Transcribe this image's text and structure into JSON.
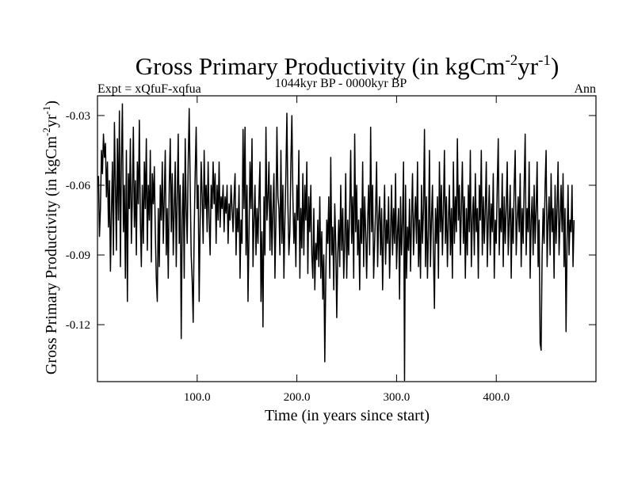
{
  "chart_data": {
    "type": "line",
    "title": "Gross Primary Productivity (in kgCm",
    "title_sup1": "-2",
    "title_mid": "yr",
    "title_sup2": "-1",
    "title_end": ")",
    "subtitle_left": "Expt = xQfuF-xqfua",
    "subtitle_center": "1044kyr BP - 0000kyr BP",
    "subtitle_right": "Ann",
    "xlabel": "Time (in years since start)",
    "ylabel": "Gross Primary Productivity (in kgCm",
    "ylabel_sup1": "-2",
    "ylabel_mid": "yr",
    "ylabel_sup2": "-1",
    "ylabel_end": ")",
    "xlim": [
      0,
      500
    ],
    "ylim": [
      -0.1445,
      -0.0215
    ],
    "x_ticks": [
      {
        "value": 100,
        "label": "100.0"
      },
      {
        "value": 200,
        "label": "200.0"
      },
      {
        "value": 300,
        "label": "300.0"
      },
      {
        "value": 400,
        "label": "400.0"
      }
    ],
    "y_ticks": [
      {
        "value": -0.03,
        "label": "-0.03"
      },
      {
        "value": -0.06,
        "label": "-0.06"
      },
      {
        "value": -0.09,
        "label": "-0.09"
      },
      {
        "value": -0.12,
        "label": "-0.12"
      }
    ],
    "series": [
      {
        "name": "Ann",
        "x_start": 1,
        "x_step": 1,
        "color": "#000000",
        "values": [
          -0.056,
          -0.082,
          -0.07,
          -0.045,
          -0.055,
          -0.038,
          -0.048,
          -0.042,
          -0.065,
          -0.05,
          -0.078,
          -0.058,
          -0.097,
          -0.072,
          -0.05,
          -0.09,
          -0.033,
          -0.06,
          -0.088,
          -0.04,
          -0.075,
          -0.028,
          -0.095,
          -0.05,
          -0.025,
          -0.08,
          -0.06,
          -0.1,
          -0.045,
          -0.11,
          -0.055,
          -0.07,
          -0.04,
          -0.085,
          -0.065,
          -0.035,
          -0.078,
          -0.058,
          -0.09,
          -0.05,
          -0.068,
          -0.032,
          -0.075,
          -0.095,
          -0.06,
          -0.085,
          -0.05,
          -0.07,
          -0.04,
          -0.088,
          -0.06,
          -0.075,
          -0.045,
          -0.093,
          -0.055,
          -0.068,
          -0.052,
          -0.08,
          -0.1,
          -0.11,
          -0.07,
          -0.095,
          -0.06,
          -0.075,
          -0.05,
          -0.085,
          -0.065,
          -0.045,
          -0.09,
          -0.07,
          -0.1,
          -0.06,
          -0.04,
          -0.08,
          -0.055,
          -0.09,
          -0.07,
          -0.05,
          -0.095,
          -0.065,
          -0.038,
          -0.085,
          -0.06,
          -0.126,
          -0.075,
          -0.055,
          -0.1,
          -0.04,
          -0.07,
          -0.085,
          -0.05,
          -0.027,
          -0.06,
          -0.09,
          -0.101,
          -0.119,
          -0.08,
          -0.055,
          -0.035,
          -0.07,
          -0.06,
          -0.11,
          -0.075,
          -0.05,
          -0.065,
          -0.085,
          -0.045,
          -0.07,
          -0.06,
          -0.08,
          -0.05,
          -0.075,
          -0.09,
          -0.06,
          -0.07,
          -0.05,
          -0.068,
          -0.055,
          -0.085,
          -0.06,
          -0.075,
          -0.05,
          -0.078,
          -0.065,
          -0.07,
          -0.06,
          -0.08,
          -0.065,
          -0.072,
          -0.06,
          -0.085,
          -0.068,
          -0.075,
          -0.06,
          -0.07,
          -0.08,
          -0.065,
          -0.055,
          -0.09,
          -0.07,
          -0.08,
          -0.06,
          -0.1,
          -0.075,
          -0.085,
          -0.036,
          -0.07,
          -0.035,
          -0.09,
          -0.06,
          -0.11,
          -0.08,
          -0.05,
          -0.07,
          -0.04,
          -0.095,
          -0.075,
          -0.06,
          -0.09,
          -0.07,
          -0.085,
          -0.065,
          -0.05,
          -0.11,
          -0.08,
          -0.121,
          -0.065,
          -0.09,
          -0.035,
          -0.075,
          -0.065,
          -0.05,
          -0.088,
          -0.06,
          -0.09,
          -0.07,
          -0.055,
          -0.1,
          -0.075,
          -0.035,
          -0.065,
          -0.07,
          -0.09,
          -0.045,
          -0.085,
          -0.06,
          -0.1,
          -0.075,
          -0.055,
          -0.029,
          -0.068,
          -0.09,
          -0.08,
          -0.05,
          -0.03,
          -0.065,
          -0.085,
          -0.072,
          -0.095,
          -0.06,
          -0.075,
          -0.045,
          -0.1,
          -0.07,
          -0.087,
          -0.055,
          -0.09,
          -0.06,
          -0.075,
          -0.05,
          -0.098,
          -0.065,
          -0.08,
          -0.06,
          -0.09,
          -0.1,
          -0.07,
          -0.105,
          -0.085,
          -0.092,
          -0.075,
          -0.095,
          -0.065,
          -0.1,
          -0.08,
          -0.109,
          -0.09,
          -0.136,
          -0.1,
          -0.075,
          -0.085,
          -0.065,
          -0.1,
          -0.048,
          -0.09,
          -0.078,
          -0.105,
          -0.068,
          -0.085,
          -0.117,
          -0.09,
          -0.075,
          -0.095,
          -0.06,
          -0.088,
          -0.07,
          -0.1,
          -0.085,
          -0.055,
          -0.1,
          -0.075,
          -0.09,
          -0.07,
          -0.045,
          -0.085,
          -0.065,
          -0.1,
          -0.038,
          -0.08,
          -0.06,
          -0.09,
          -0.075,
          -0.105,
          -0.07,
          -0.085,
          -0.05,
          -0.095,
          -0.065,
          -0.08,
          -0.1,
          -0.075,
          -0.06,
          -0.09,
          -0.035,
          -0.08,
          -0.06,
          -0.1,
          -0.085,
          -0.07,
          -0.05,
          -0.095,
          -0.075,
          -0.065,
          -0.09,
          -0.07,
          -0.105,
          -0.08,
          -0.06,
          -0.094,
          -0.075,
          -0.085,
          -0.065,
          -0.1,
          -0.08,
          -0.06,
          -0.09,
          -0.07,
          -0.085,
          -0.055,
          -0.096,
          -0.08,
          -0.07,
          -0.109,
          -0.065,
          -0.09,
          -0.075,
          -0.05,
          -0.144,
          -0.06,
          -0.1,
          -0.078,
          -0.088,
          -0.066,
          -0.097,
          -0.075,
          -0.055,
          -0.09,
          -0.075,
          -0.065,
          -0.085,
          -0.05,
          -0.095,
          -0.075,
          -0.1,
          -0.06,
          -0.085,
          -0.07,
          -0.036,
          -0.095,
          -0.065,
          -0.1,
          -0.08,
          -0.045,
          -0.095,
          -0.075,
          -0.06,
          -0.09,
          -0.113,
          -0.07,
          -0.085,
          -0.065,
          -0.1,
          -0.05,
          -0.08,
          -0.06,
          -0.09,
          -0.07,
          -0.045,
          -0.085,
          -0.065,
          -0.095,
          -0.075,
          -0.06,
          -0.09,
          -0.07,
          -0.1,
          -0.05,
          -0.085,
          -0.065,
          -0.08,
          -0.04,
          -0.075,
          -0.06,
          -0.09,
          -0.07,
          -0.05,
          -0.085,
          -0.065,
          -0.1,
          -0.07,
          -0.09,
          -0.06,
          -0.08,
          -0.045,
          -0.095,
          -0.075,
          -0.065,
          -0.09,
          -0.055,
          -0.08,
          -0.07,
          -0.1,
          -0.06,
          -0.075,
          -0.045,
          -0.09,
          -0.065,
          -0.085,
          -0.07,
          -0.05,
          -0.095,
          -0.075,
          -0.06,
          -0.09,
          -0.068,
          -0.08,
          -0.055,
          -0.1,
          -0.075,
          -0.085,
          -0.06,
          -0.04,
          -0.09,
          -0.07,
          -0.08,
          -0.055,
          -0.095,
          -0.065,
          -0.085,
          -0.07,
          -0.05,
          -0.09,
          -0.075,
          -0.06,
          -0.1,
          -0.07,
          -0.085,
          -0.06,
          -0.045,
          -0.09,
          -0.075,
          -0.065,
          -0.08,
          -0.055,
          -0.095,
          -0.07,
          -0.085,
          -0.06,
          -0.038,
          -0.09,
          -0.07,
          -0.08,
          -0.05,
          -0.1,
          -0.075,
          -0.065,
          -0.09,
          -0.06,
          -0.085,
          -0.07,
          -0.05,
          -0.095,
          -0.075,
          -0.128,
          -0.131,
          -0.09,
          -0.07,
          -0.085,
          -0.06,
          -0.045,
          -0.095,
          -0.075,
          -0.065,
          -0.09,
          -0.055,
          -0.08,
          -0.07,
          -0.1,
          -0.06,
          -0.085,
          -0.07,
          -0.05,
          -0.09,
          -0.075,
          -0.06,
          -0.08,
          -0.055,
          -0.095,
          -0.07,
          -0.123,
          -0.085,
          -0.06,
          -0.09,
          -0.075,
          -0.08,
          -0.06,
          -0.095,
          -0.075
        ]
      }
    ]
  }
}
